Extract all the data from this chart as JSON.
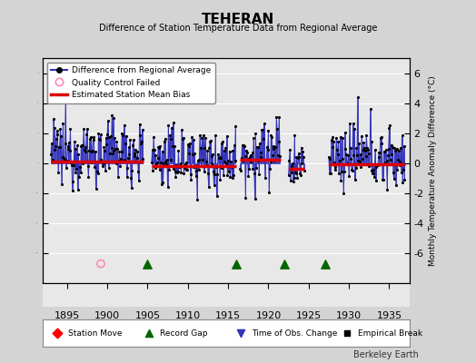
{
  "title": "TEHERAN",
  "subtitle": "Difference of Station Temperature Data from Regional Average",
  "ylabel": "Monthly Temperature Anomaly Difference (°C)",
  "xlim": [
    1892.0,
    1937.5
  ],
  "ylim": [
    -8,
    7
  ],
  "yticks_right": [
    -6,
    -4,
    -2,
    0,
    2,
    4,
    6
  ],
  "yticks_left": [
    -6,
    -4,
    -2,
    0,
    2,
    4,
    6
  ],
  "xticks": [
    1895,
    1900,
    1905,
    1910,
    1915,
    1920,
    1925,
    1930,
    1935
  ],
  "bg_color": "#d4d4d4",
  "plot_bg_color": "#e8e8e8",
  "line_color": "#3333bb",
  "fill_color": "#aaaadd",
  "bias_color": "#dd0000",
  "marker_color": "#000000",
  "watermark": "Berkeley Earth",
  "data_segments": [
    {
      "x_start": 1893.0,
      "x_end": 1904.5,
      "bias": 0.12,
      "mean": 0.8,
      "std": 1.1
    },
    {
      "x_start": 1905.5,
      "x_end": 1916.0,
      "bias": -0.18,
      "mean": 0.35,
      "std": 1.05
    },
    {
      "x_start": 1916.5,
      "x_end": 1921.5,
      "bias": 0.22,
      "mean": 0.65,
      "std": 1.15
    },
    {
      "x_start": 1922.5,
      "x_end": 1924.5,
      "bias": -0.38,
      "mean": -0.1,
      "std": 0.75
    },
    {
      "x_start": 1927.5,
      "x_end": 1937.0,
      "bias": -0.08,
      "mean": 0.45,
      "std": 1.0
    }
  ],
  "record_gaps": [
    1905.0,
    1916.0,
    1922.0,
    1927.0
  ],
  "quality_fail_x": [
    1899.2
  ],
  "quality_fail_y": [
    -6.7
  ],
  "seed": 12345
}
